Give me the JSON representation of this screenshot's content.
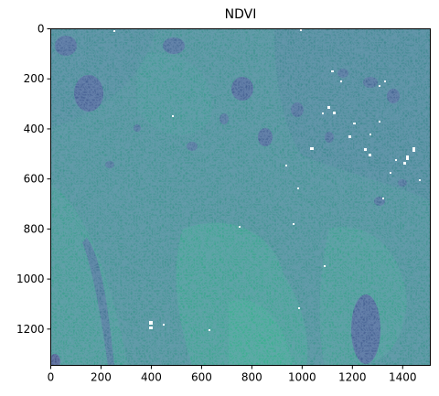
{
  "chart_data": {
    "type": "heatmap",
    "title": "NDVI",
    "xlabel": "",
    "ylabel": "",
    "xlim": [
      0,
      1510
    ],
    "ylim": [
      1345,
      0
    ],
    "x_ticks": [
      0,
      200,
      400,
      600,
      800,
      1000,
      1200,
      1400
    ],
    "y_ticks": [
      0,
      200,
      400,
      600,
      800,
      1000,
      1200
    ],
    "grid": false,
    "colormap": "viridis",
    "colors": {
      "background": "#3a8c8a",
      "light_green": "#33a384",
      "dark_water": "#3c4c8a",
      "mid_blue": "#3f6e8e",
      "nodata": "#ffffff"
    }
  }
}
